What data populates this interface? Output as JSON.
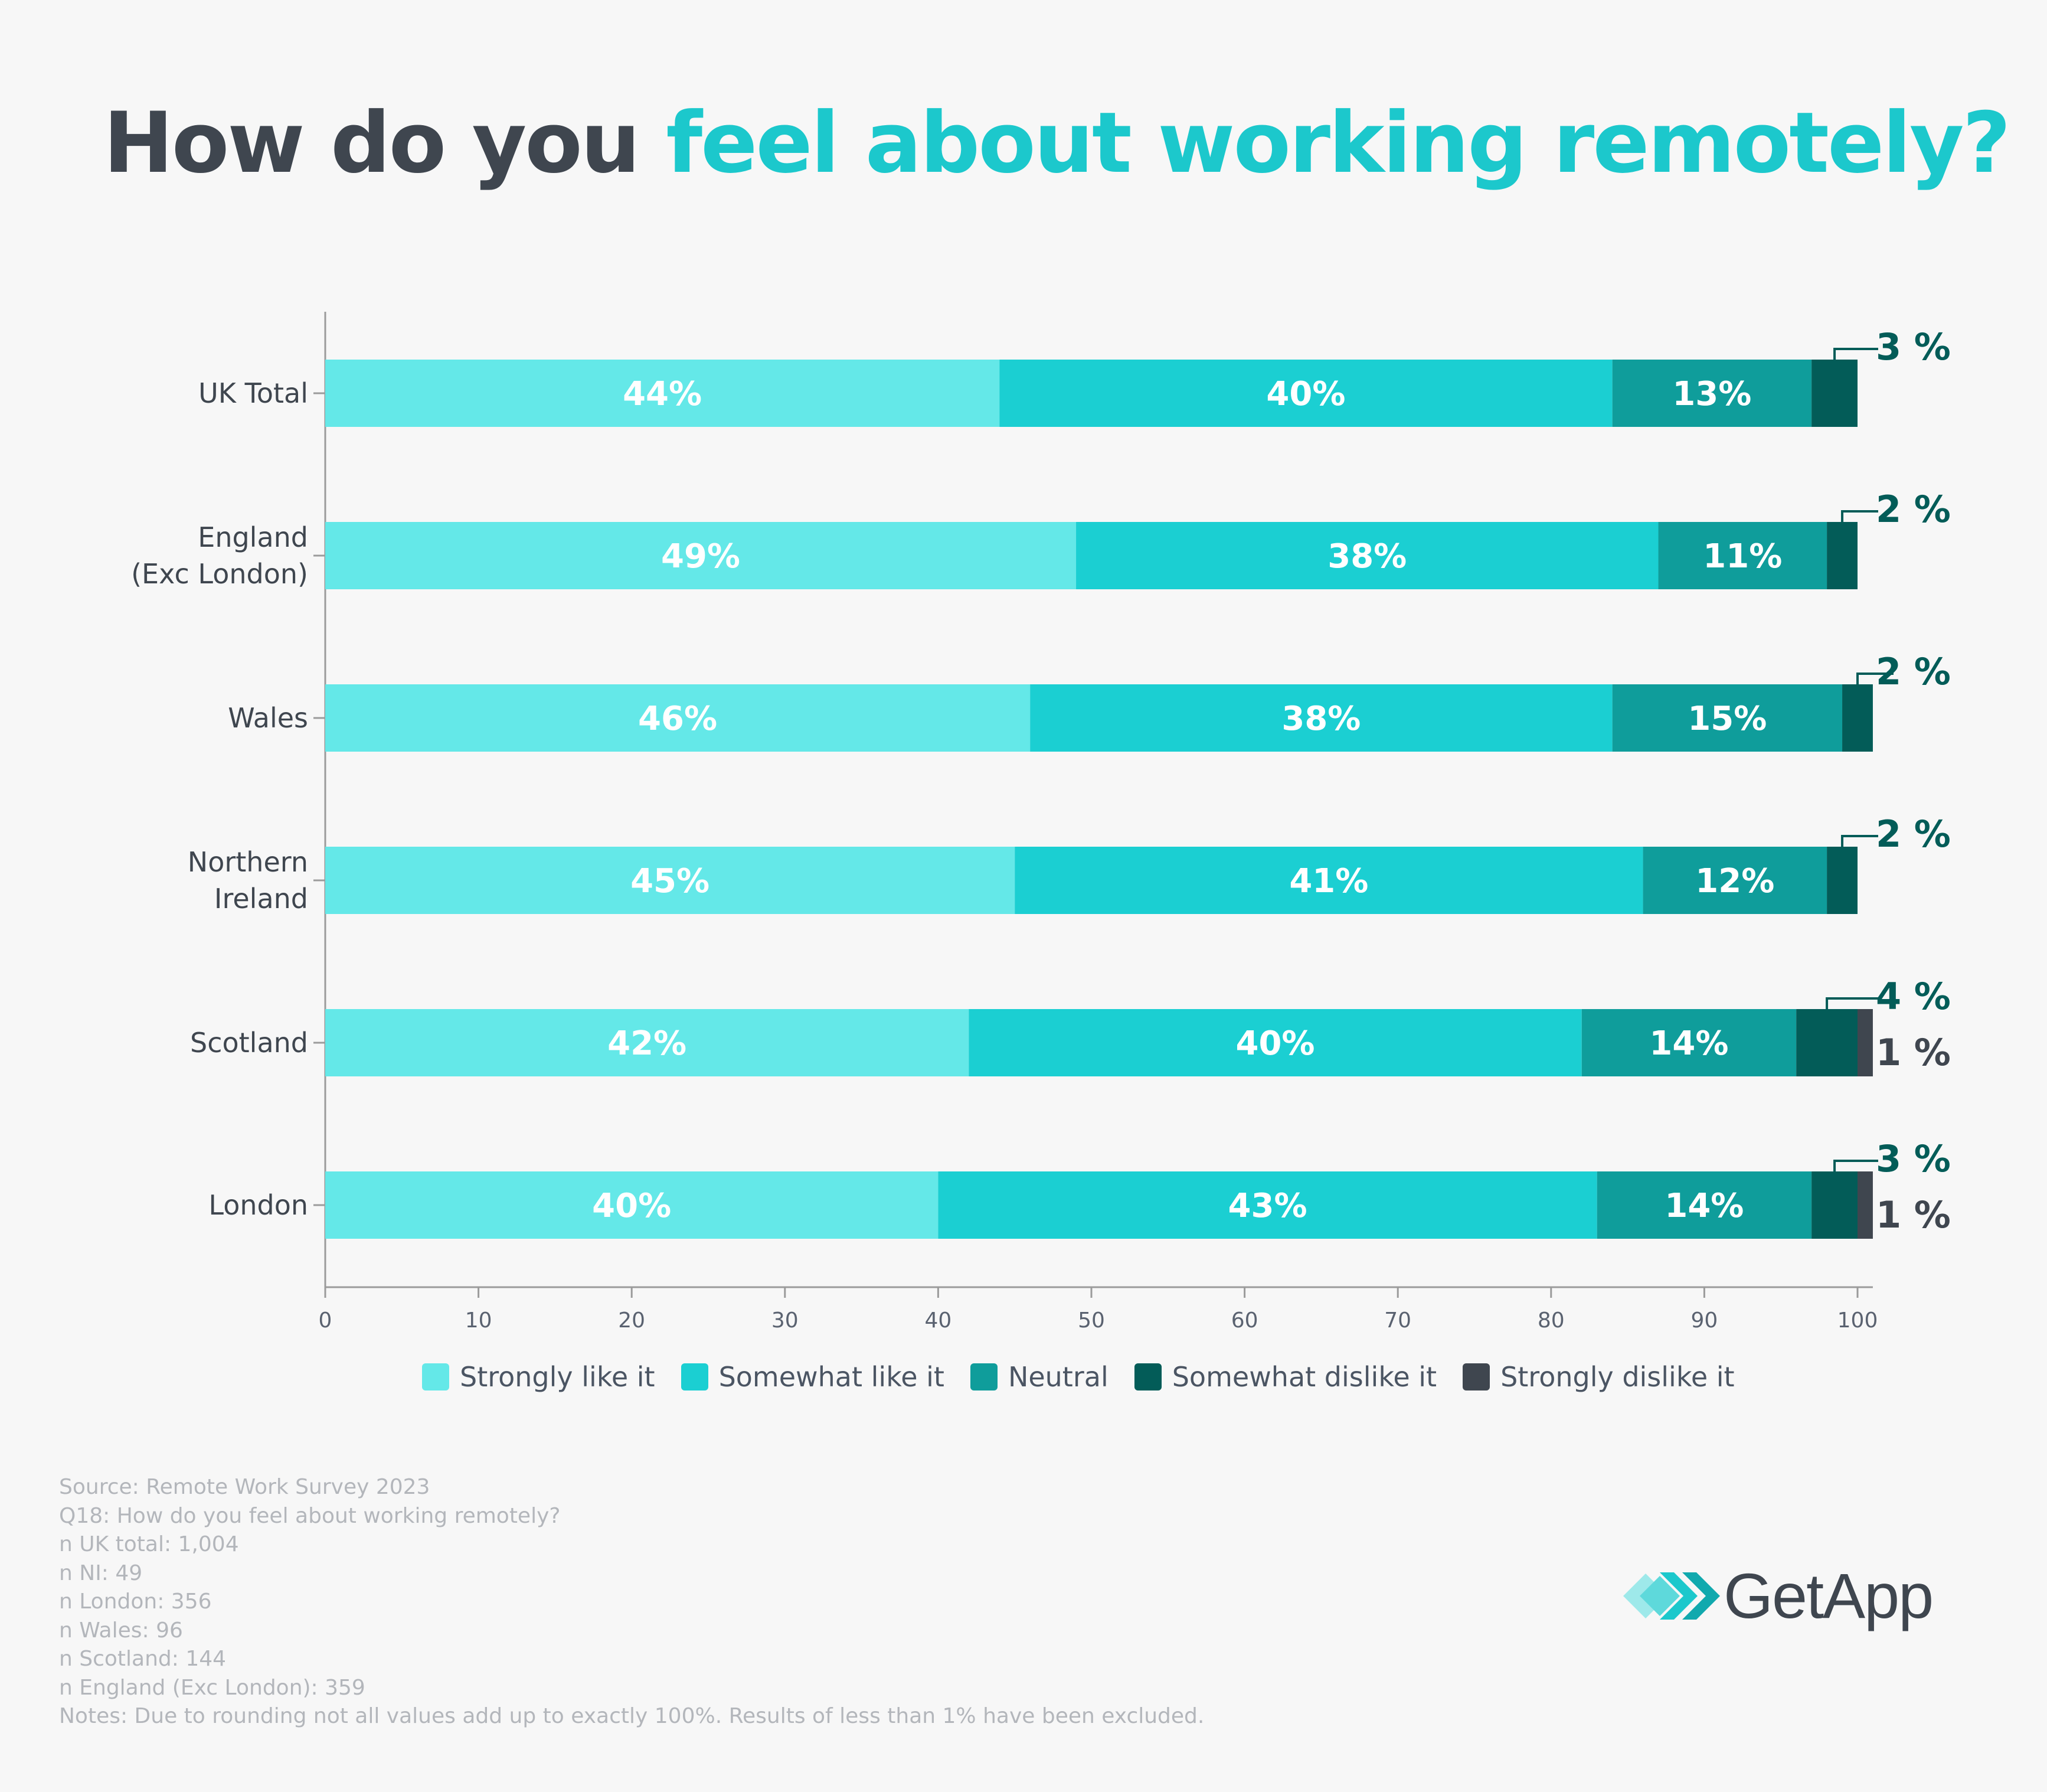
{
  "title": {
    "part1": "How do you ",
    "part2": "feel about working remotely?"
  },
  "colors": {
    "title_dark": "#3f464f",
    "title_accent": "#1cc8cc",
    "strongly_like": "#64e8e8",
    "somewhat_like": "#1bcfd2",
    "neutral": "#0f9d9b",
    "somewhat_dislike": "#035c58",
    "strongly_dislike": "#3f464f"
  },
  "chart_data": {
    "type": "bar",
    "orientation": "horizontal",
    "stacked": true,
    "title": "How do you feel about working remotely?",
    "xlabel": "",
    "ylabel": "",
    "xlim": [
      0,
      100
    ],
    "xticks": [
      "0",
      "10",
      "20",
      "30",
      "40",
      "50",
      "60",
      "70",
      "80",
      "90",
      "100"
    ],
    "categories": [
      "UK Total",
      "England (Exc London)",
      "Wales",
      "Northern Ireland",
      "Scotland",
      "London"
    ],
    "category_lines": [
      [
        "UK Total"
      ],
      [
        "England",
        "(Exc London)"
      ],
      [
        "Wales"
      ],
      [
        "Northern",
        "Ireland"
      ],
      [
        "Scotland"
      ],
      [
        "London"
      ]
    ],
    "legend_position": "bottom",
    "series": [
      {
        "name": "Strongly like it",
        "color": "#64e8e8",
        "values": [
          44,
          49,
          46,
          45,
          42,
          40
        ],
        "labels": [
          "44%",
          "49%",
          "46%",
          "45%",
          "42%",
          "40%"
        ]
      },
      {
        "name": "Somewhat like it",
        "color": "#1bcfd2",
        "values": [
          40,
          38,
          38,
          41,
          40,
          43
        ],
        "labels": [
          "40%",
          "38%",
          "38%",
          "41%",
          "40%",
          "43%"
        ]
      },
      {
        "name": "Neutral",
        "color": "#0f9d9b",
        "values": [
          13,
          11,
          15,
          12,
          14,
          14
        ],
        "labels": [
          "13%",
          "11%",
          "15%",
          "12%",
          "14%",
          "14%"
        ]
      },
      {
        "name": "Somewhat dislike it",
        "color": "#035c58",
        "values": [
          3,
          2,
          2,
          2,
          4,
          3
        ],
        "labels": [
          "3 %",
          "2 %",
          "2 %",
          "2 %",
          "4 %",
          "3 %"
        ]
      },
      {
        "name": "Strongly dislike it",
        "color": "#3f464f",
        "values": [
          0,
          0,
          0,
          0,
          1,
          1
        ],
        "labels": [
          "",
          "",
          "",
          "",
          "1 %",
          "1 %"
        ]
      }
    ]
  },
  "notes": [
    "Source: Remote Work Survey 2023",
    "Q18: How do you feel about working remotely?",
    "n UK total: 1,004",
    "n NI: 49",
    "n London: 356",
    "n Wales: 96",
    "n Scotland: 144",
    "n England (Exc London): 359",
    "Notes: Due to rounding not all values add up to exactly 100%. Results of less than 1% have been excluded."
  ],
  "logo": {
    "icon": "getapp-chevrons-icon",
    "text": "GetApp"
  }
}
